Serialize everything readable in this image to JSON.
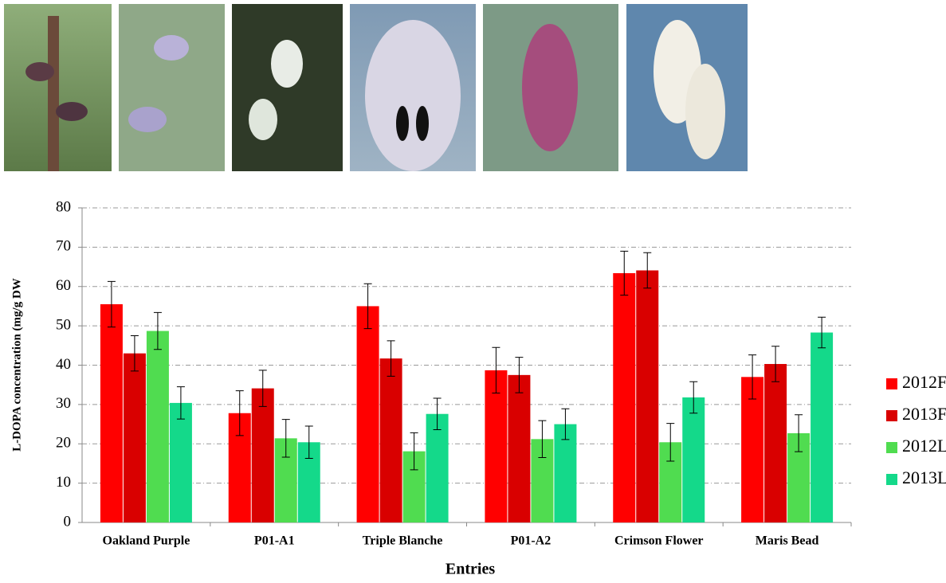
{
  "chart_data": {
    "type": "bar",
    "y_label": "L-DOPA concentration (mg/g DW",
    "x_label": "Entries",
    "categories": [
      "Oakland Purple",
      "P01-A1",
      "Triple Blanche",
      "P01-A2",
      "Crimson Flower",
      "Maris Bead"
    ],
    "series": [
      {
        "name": "2012F",
        "color": "#ff0000",
        "values": [
          55.5,
          27.8,
          55,
          38.7,
          63.4,
          37
        ],
        "errors": [
          5.8,
          5.7,
          5.7,
          5.8,
          5.6,
          5.6
        ]
      },
      {
        "name": "2013F",
        "color": "#d90000",
        "values": [
          43,
          34.1,
          41.7,
          37.5,
          64.1,
          40.3
        ],
        "errors": [
          4.5,
          4.6,
          4.5,
          4.5,
          4.5,
          4.5
        ]
      },
      {
        "name": "2012L",
        "color": "#50dc50",
        "values": [
          48.7,
          21.4,
          18.1,
          21.2,
          20.4,
          22.7
        ],
        "errors": [
          4.7,
          4.8,
          4.7,
          4.7,
          4.8,
          4.7
        ]
      },
      {
        "name": "2013L",
        "color": "#14d98a",
        "values": [
          30.4,
          20.4,
          27.6,
          25,
          31.8,
          48.3
        ],
        "errors": [
          4.1,
          4.1,
          4,
          3.9,
          4,
          3.9
        ]
      }
    ],
    "ylim": [
      0,
      80
    ],
    "yticks": [
      0,
      10,
      20,
      30,
      40,
      50,
      60,
      70,
      80
    ],
    "grid": true,
    "legend": "right"
  }
}
